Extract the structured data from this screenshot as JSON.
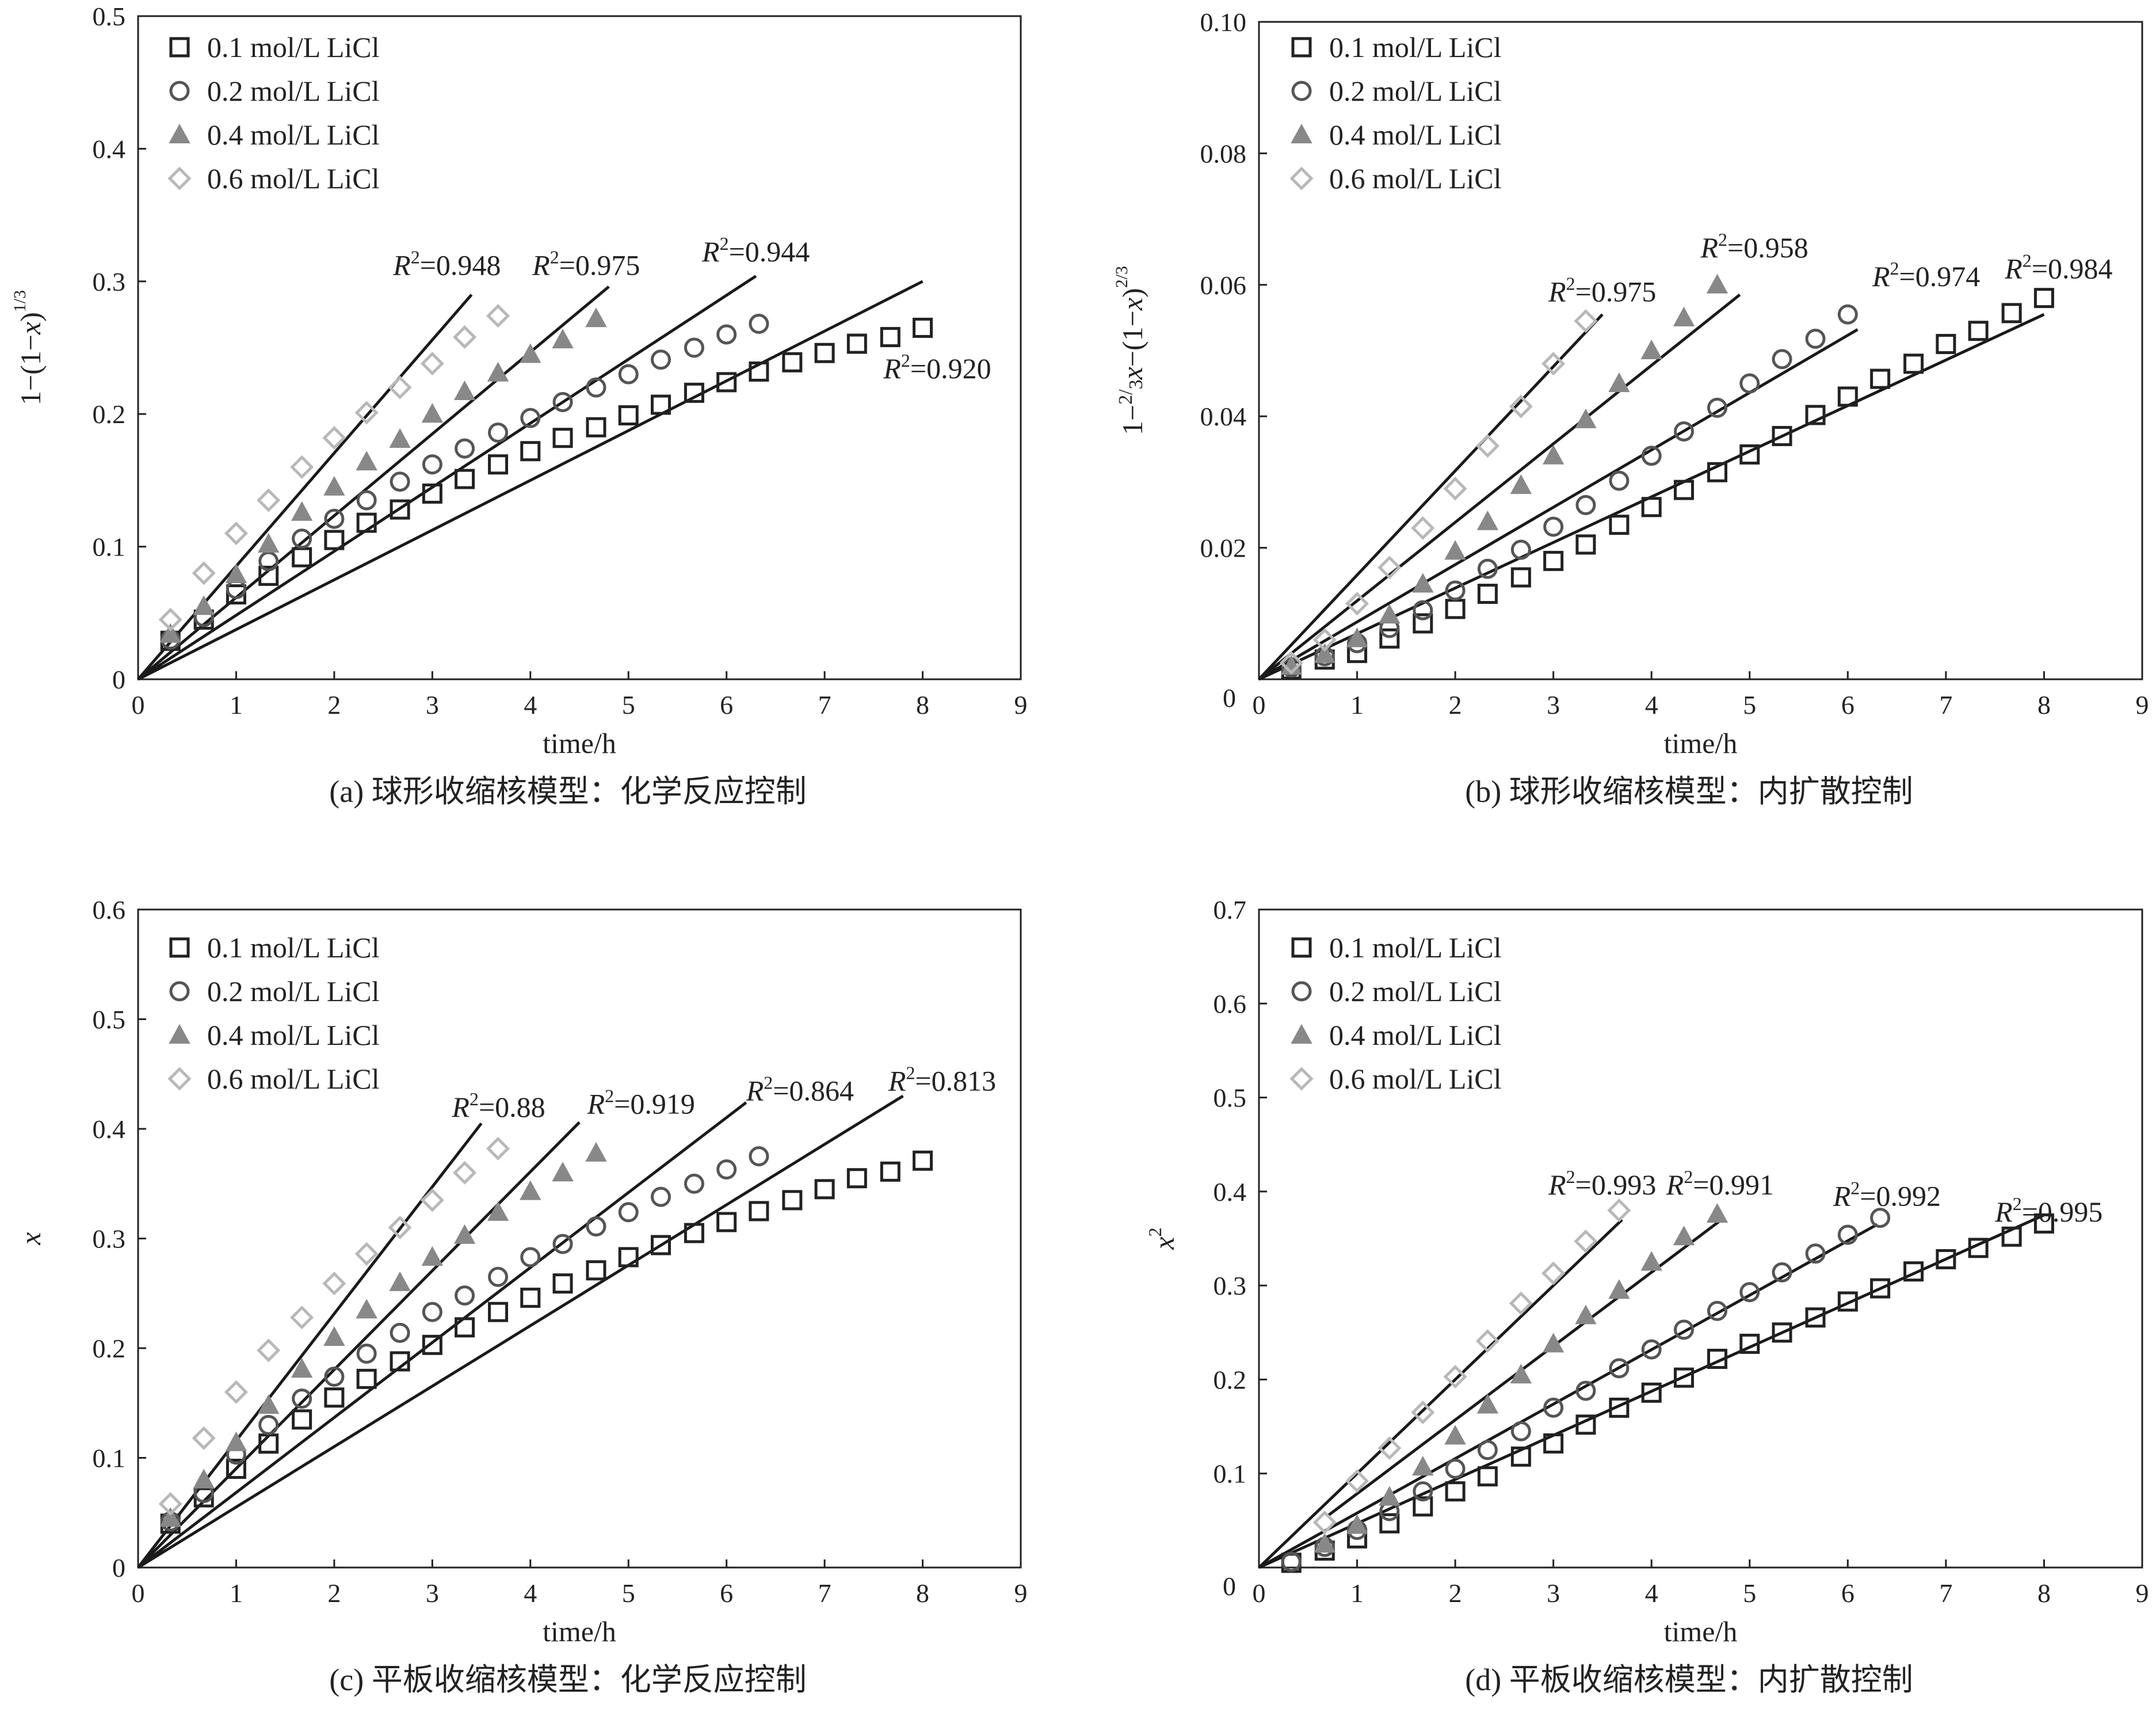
{
  "figure": {
    "type": "multi-panel scientific chart"
  },
  "chart_data": [
    {
      "id": "a",
      "type": "scatter",
      "caption": "(a) 球形收缩核模型：化学反应控制",
      "xlabel": "time/h",
      "ylabel": "1−(1−x)^(1/3)",
      "ylabel_parts": {
        "lead": "1−(1−",
        "var": "x",
        "close": ")",
        "exp_num": "1",
        "exp_den": "3"
      },
      "xlim": [
        0,
        9
      ],
      "ylim": [
        0,
        0.5
      ],
      "xticks": [
        "0",
        "1",
        "2",
        "3",
        "4",
        "5",
        "6",
        "7",
        "8",
        "9"
      ],
      "yticks": [
        "0",
        "0.1",
        "0.2",
        "0.3",
        "0.4",
        "0.5"
      ],
      "legend_position": "top-left",
      "series": [
        {
          "name": "0.1 mol/L LiCl",
          "marker": "square",
          "color": "#222222",
          "x": [
            0.33,
            0.67,
            1,
            1.33,
            1.67,
            2,
            2.33,
            2.67,
            3,
            3.33,
            3.67,
            4,
            4.33,
            4.67,
            5,
            5.33,
            5.67,
            6,
            6.33,
            6.67,
            7,
            7.33,
            7.67,
            8
          ],
          "y": [
            0.029,
            0.045,
            0.064,
            0.078,
            0.092,
            0.105,
            0.118,
            0.128,
            0.14,
            0.151,
            0.162,
            0.172,
            0.182,
            0.19,
            0.199,
            0.207,
            0.216,
            0.224,
            0.232,
            0.239,
            0.246,
            0.253,
            0.258,
            0.265
          ],
          "fit": {
            "x0": 0,
            "y0": 0,
            "x1": 8,
            "y1": 0.3,
            "r2": "0.920"
          }
        },
        {
          "name": "0.2 mol/L LiCl",
          "marker": "circle",
          "color": "#555555",
          "x": [
            0.33,
            0.67,
            1,
            1.33,
            1.67,
            2,
            2.33,
            2.67,
            3,
            3.33,
            3.67,
            4,
            4.33,
            4.67,
            5,
            5.33,
            5.67,
            6,
            6.33
          ],
          "y": [
            0.03,
            0.047,
            0.068,
            0.089,
            0.106,
            0.121,
            0.135,
            0.149,
            0.162,
            0.174,
            0.186,
            0.197,
            0.209,
            0.22,
            0.23,
            0.241,
            0.25,
            0.26,
            0.268
          ],
          "fit": {
            "x0": 0,
            "y0": 0,
            "x1": 6.3,
            "y1": 0.304,
            "r2": "0.944"
          }
        },
        {
          "name": "0.4 mol/L LiCl",
          "marker": "triangle",
          "color": "#888888",
          "x": [
            0.33,
            0.67,
            1,
            1.33,
            1.67,
            2,
            2.33,
            2.67,
            3,
            3.33,
            3.67,
            4,
            4.33,
            4.67
          ],
          "y": [
            0.034,
            0.055,
            0.079,
            0.102,
            0.126,
            0.145,
            0.164,
            0.181,
            0.2,
            0.217,
            0.231,
            0.245,
            0.256,
            0.272
          ],
          "fit": {
            "x0": 0,
            "y0": 0,
            "x1": 4.8,
            "y1": 0.296,
            "r2": "0.975"
          }
        },
        {
          "name": "0.6 mol/L LiCl",
          "marker": "diamond",
          "color": "#b8b8b8",
          "x": [
            0.33,
            0.67,
            1,
            1.33,
            1.67,
            2,
            2.33,
            2.67,
            3,
            3.33,
            3.67
          ],
          "y": [
            0.045,
            0.08,
            0.11,
            0.135,
            0.16,
            0.182,
            0.201,
            0.22,
            0.238,
            0.258,
            0.274
          ],
          "fit": {
            "x0": 0,
            "y0": 0,
            "x1": 3.4,
            "y1": 0.29,
            "r2": "0.948"
          }
        }
      ],
      "r2_labels": [
        {
          "text": "0.948",
          "x": 2.6,
          "y": 0.305
        },
        {
          "text": "0.975",
          "x": 4.02,
          "y": 0.305
        },
        {
          "text": "0.944",
          "x": 5.75,
          "y": 0.315
        },
        {
          "text": "0.920",
          "x": 7.6,
          "y": 0.227
        }
      ]
    },
    {
      "id": "b",
      "type": "scatter",
      "caption": "(b) 球形收缩核模型：内扩散控制",
      "xlabel": "time/h",
      "ylabel": "1−(2/3)x−(1−x)^(2/3)",
      "ylabel_parts": {
        "lead": "1−",
        "frac_num": "2",
        "frac_den": "3",
        "var": "x",
        "mid": "−(1−",
        "var2": "x",
        "close": ")",
        "exp_num": "2",
        "exp_den": "3"
      },
      "xlim": [
        0,
        9
      ],
      "ylim": [
        0,
        0.1
      ],
      "xticks": [
        "0",
        "1",
        "2",
        "3",
        "4",
        "5",
        "6",
        "7",
        "8",
        "9"
      ],
      "yticks": [
        "0.02",
        "0.04",
        "0.06",
        "0.08",
        "0.10"
      ],
      "y_origin_label": "0",
      "legend_position": "top-left",
      "series": [
        {
          "name": "0.1 mol/L LiCl",
          "marker": "square",
          "color": "#222222",
          "x": [
            0.33,
            0.67,
            1,
            1.33,
            1.67,
            2,
            2.33,
            2.67,
            3,
            3.33,
            3.67,
            4,
            4.33,
            4.67,
            5,
            5.33,
            5.67,
            6,
            6.33,
            6.67,
            7,
            7.33,
            7.67,
            8
          ],
          "y": [
            0.0015,
            0.003,
            0.004,
            0.0062,
            0.0085,
            0.0107,
            0.013,
            0.0155,
            0.018,
            0.0205,
            0.0235,
            0.0262,
            0.0288,
            0.0315,
            0.0342,
            0.037,
            0.0402,
            0.043,
            0.0457,
            0.048,
            0.051,
            0.053,
            0.0557,
            0.058
          ],
          "fit": {
            "x0": 0,
            "y0": 0,
            "x1": 8,
            "y1": 0.0555,
            "r2": "0.984"
          }
        },
        {
          "name": "0.2 mol/L LiCl",
          "marker": "circle",
          "color": "#555555",
          "x": [
            0.33,
            0.67,
            1,
            1.33,
            1.67,
            2,
            2.33,
            2.67,
            3,
            3.33,
            3.67,
            4,
            4.33,
            4.67,
            5,
            5.33,
            5.67,
            6
          ],
          "y": [
            0.0018,
            0.0035,
            0.0055,
            0.0078,
            0.0105,
            0.0135,
            0.0168,
            0.0197,
            0.0232,
            0.0265,
            0.0302,
            0.034,
            0.0377,
            0.0413,
            0.045,
            0.0487,
            0.0518,
            0.0555
          ],
          "fit": {
            "x0": 0,
            "y0": 0,
            "x1": 6.1,
            "y1": 0.0532,
            "r2": "0.974"
          }
        },
        {
          "name": "0.4 mol/L LiCl",
          "marker": "triangle",
          "color": "#888888",
          "x": [
            0.33,
            0.67,
            1,
            1.33,
            1.67,
            2,
            2.33,
            2.67,
            3,
            3.33,
            3.67,
            4,
            4.33,
            4.67
          ],
          "y": [
            0.002,
            0.0038,
            0.0062,
            0.0098,
            0.0145,
            0.0195,
            0.024,
            0.0295,
            0.034,
            0.0395,
            0.045,
            0.05,
            0.055,
            0.06
          ],
          "fit": {
            "x0": 0,
            "y0": 0,
            "x1": 4.9,
            "y1": 0.0585,
            "r2": "0.958"
          }
        },
        {
          "name": "0.6 mol/L LiCl",
          "marker": "diamond",
          "color": "#b8b8b8",
          "x": [
            0.33,
            0.67,
            1,
            1.33,
            1.67,
            2,
            2.33,
            2.67,
            3,
            3.33
          ],
          "y": [
            0.0025,
            0.006,
            0.0115,
            0.017,
            0.023,
            0.029,
            0.0355,
            0.0415,
            0.048,
            0.0545
          ],
          "fit": {
            "x0": 0,
            "y0": 0,
            "x1": 3.5,
            "y1": 0.0555,
            "r2": "0.975"
          }
        }
      ],
      "r2_labels": [
        {
          "text": "0.975",
          "x": 2.95,
          "y": 0.0575
        },
        {
          "text": "0.958",
          "x": 4.5,
          "y": 0.0642
        },
        {
          "text": "0.974",
          "x": 6.25,
          "y": 0.0598
        },
        {
          "text": "0.984",
          "x": 7.6,
          "y": 0.061
        }
      ]
    },
    {
      "id": "c",
      "type": "scatter",
      "caption": "(c) 平板收缩核模型：化学反应控制",
      "xlabel": "time/h",
      "ylabel": "x",
      "ylabel_parts": {
        "var": "x"
      },
      "xlim": [
        0,
        9
      ],
      "ylim": [
        0,
        0.6
      ],
      "xticks": [
        "0",
        "1",
        "2",
        "3",
        "4",
        "5",
        "6",
        "7",
        "8",
        "9"
      ],
      "yticks": [
        "0",
        "0.1",
        "0.2",
        "0.3",
        "0.4",
        "0.5",
        "0.6"
      ],
      "legend_position": "top-left",
      "series": [
        {
          "name": "0.1 mol/L LiCl",
          "marker": "square",
          "color": "#222222",
          "x": [
            0.33,
            0.67,
            1,
            1.33,
            1.67,
            2,
            2.33,
            2.67,
            3,
            3.33,
            3.67,
            4,
            4.33,
            4.67,
            5,
            5.33,
            5.67,
            6,
            6.33,
            6.67,
            7,
            7.33,
            7.67,
            8
          ],
          "y": [
            0.04,
            0.064,
            0.09,
            0.113,
            0.135,
            0.155,
            0.172,
            0.188,
            0.203,
            0.219,
            0.233,
            0.246,
            0.259,
            0.271,
            0.283,
            0.294,
            0.305,
            0.315,
            0.325,
            0.335,
            0.345,
            0.355,
            0.361,
            0.371
          ],
          "fit": {
            "x0": 0,
            "y0": 0,
            "x1": 7.8,
            "y1": 0.43,
            "r2": "0.813"
          }
        },
        {
          "name": "0.2 mol/L LiCl",
          "marker": "circle",
          "color": "#555555",
          "x": [
            0.33,
            0.67,
            1,
            1.33,
            1.67,
            2,
            2.33,
            2.67,
            3,
            3.33,
            3.67,
            4,
            4.33,
            4.67,
            5,
            5.33,
            5.67,
            6,
            6.33
          ],
          "y": [
            0.042,
            0.068,
            0.103,
            0.13,
            0.154,
            0.174,
            0.195,
            0.214,
            0.233,
            0.248,
            0.265,
            0.283,
            0.295,
            0.311,
            0.324,
            0.338,
            0.35,
            0.363,
            0.375
          ],
          "fit": {
            "x0": 0,
            "y0": 0,
            "x1": 6.2,
            "y1": 0.424,
            "r2": "0.864"
          }
        },
        {
          "name": "0.4 mol/L LiCl",
          "marker": "triangle",
          "color": "#888888",
          "x": [
            0.33,
            0.67,
            1,
            1.33,
            1.67,
            2,
            2.33,
            2.67,
            3,
            3.33,
            3.67,
            4,
            4.33,
            4.67
          ],
          "y": [
            0.045,
            0.08,
            0.114,
            0.148,
            0.181,
            0.21,
            0.235,
            0.26,
            0.283,
            0.303,
            0.324,
            0.343,
            0.36,
            0.378
          ],
          "fit": {
            "x0": 0,
            "y0": 0,
            "x1": 4.5,
            "y1": 0.406,
            "r2": "0.919"
          }
        },
        {
          "name": "0.6 mol/L LiCl",
          "marker": "diamond",
          "color": "#b8b8b8",
          "x": [
            0.33,
            0.67,
            1,
            1.33,
            1.67,
            2,
            2.33,
            2.67,
            3,
            3.33,
            3.67
          ],
          "y": [
            0.058,
            0.118,
            0.16,
            0.198,
            0.228,
            0.259,
            0.286,
            0.31,
            0.335,
            0.36,
            0.382
          ],
          "fit": {
            "x0": 0,
            "y0": 0,
            "x1": 3.5,
            "y1": 0.405,
            "r2": "0.88"
          }
        }
      ],
      "r2_labels": [
        {
          "text": "0.88",
          "x": 3.2,
          "y": 0.411
        },
        {
          "text": "0.919",
          "x": 4.58,
          "y": 0.414
        },
        {
          "text": "0.864",
          "x": 6.2,
          "y": 0.426
        },
        {
          "text": "0.813",
          "x": 7.65,
          "y": 0.435
        }
      ]
    },
    {
      "id": "d",
      "type": "scatter",
      "caption": "(d) 平板收缩核模型：内扩散控制",
      "xlabel": "time/h",
      "ylabel": "x^2",
      "ylabel_parts": {
        "var": "x",
        "sup": "2"
      },
      "xlim": [
        0,
        9
      ],
      "ylim": [
        0,
        0.7
      ],
      "xticks": [
        "0",
        "1",
        "2",
        "3",
        "4",
        "5",
        "6",
        "7",
        "8",
        "9"
      ],
      "yticks": [
        "0.1",
        "0.2",
        "0.3",
        "0.4",
        "0.5",
        "0.6",
        "0.7"
      ],
      "y_origin_label": "0",
      "legend_position": "top-left",
      "series": [
        {
          "name": "0.1 mol/L LiCl",
          "marker": "square",
          "color": "#222222",
          "x": [
            0.33,
            0.67,
            1,
            1.33,
            1.67,
            2,
            2.33,
            2.67,
            3,
            3.33,
            3.67,
            4,
            4.33,
            4.67,
            5,
            5.33,
            5.67,
            6,
            6.33,
            6.67,
            7,
            7.33,
            7.67,
            8
          ],
          "y": [
            0.005,
            0.018,
            0.031,
            0.047,
            0.065,
            0.081,
            0.097,
            0.118,
            0.132,
            0.152,
            0.17,
            0.186,
            0.202,
            0.222,
            0.238,
            0.25,
            0.266,
            0.283,
            0.297,
            0.315,
            0.328,
            0.34,
            0.352,
            0.366
          ],
          "fit": {
            "x0": 0,
            "y0": 0,
            "x1": 8,
            "y1": 0.375,
            "r2": "0.995"
          }
        },
        {
          "name": "0.2 mol/L LiCl",
          "marker": "circle",
          "color": "#555555",
          "x": [
            0.33,
            0.67,
            1,
            1.33,
            1.67,
            2,
            2.33,
            2.67,
            3,
            3.33,
            3.67,
            4,
            4.33,
            4.67,
            5,
            5.33,
            5.67,
            6,
            6.33
          ],
          "y": [
            0.006,
            0.022,
            0.04,
            0.06,
            0.081,
            0.105,
            0.125,
            0.145,
            0.17,
            0.188,
            0.212,
            0.232,
            0.253,
            0.273,
            0.293,
            0.314,
            0.334,
            0.354,
            0.372
          ],
          "fit": {
            "x0": 0,
            "y0": 0,
            "x1": 6.3,
            "y1": 0.365,
            "r2": "0.992"
          }
        },
        {
          "name": "0.4 mol/L LiCl",
          "marker": "triangle",
          "color": "#888888",
          "x": [
            0.67,
            1,
            1.33,
            1.67,
            2,
            2.33,
            2.67,
            3,
            3.33,
            3.67,
            4,
            4.33,
            4.67
          ],
          "y": [
            0.025,
            0.045,
            0.075,
            0.107,
            0.14,
            0.173,
            0.205,
            0.238,
            0.268,
            0.295,
            0.325,
            0.352,
            0.376
          ],
          "fit": {
            "x0": 0.7,
            "y0": 0.055,
            "x1": 4.7,
            "y1": 0.369,
            "r2": "0.991"
          }
        },
        {
          "name": "0.6 mol/L LiCl",
          "marker": "diamond",
          "color": "#b8b8b8",
          "x": [
            0.67,
            1,
            1.33,
            1.67,
            2,
            2.33,
            2.67,
            3,
            3.33,
            3.67
          ],
          "y": [
            0.048,
            0.092,
            0.127,
            0.165,
            0.203,
            0.241,
            0.281,
            0.313,
            0.347,
            0.38
          ],
          "fit": {
            "x0": 0,
            "y0": 0,
            "x1": 3.7,
            "y1": 0.37,
            "r2": "0.993"
          }
        }
      ],
      "r2_labels": [
        {
          "text": "0.993",
          "x": 2.95,
          "y": 0.397
        },
        {
          "text": "0.991",
          "x": 4.15,
          "y": 0.397
        },
        {
          "text": "0.992",
          "x": 5.85,
          "y": 0.385
        },
        {
          "text": "0.995",
          "x": 7.5,
          "y": 0.368
        }
      ]
    }
  ]
}
